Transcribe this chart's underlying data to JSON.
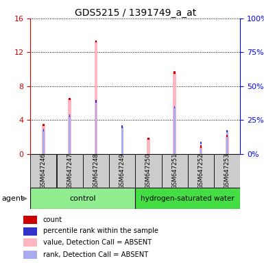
{
  "title": "GDS5215 / 1391749_a_at",
  "samples": [
    "GSM647246",
    "GSM647247",
    "GSM647248",
    "GSM647249",
    "GSM647250",
    "GSM647251",
    "GSM647252",
    "GSM647253"
  ],
  "value_absent": [
    3.4,
    6.5,
    13.3,
    0.0,
    1.8,
    9.6,
    0.85,
    2.1
  ],
  "rank_absent": [
    2.8,
    4.5,
    6.2,
    3.2,
    0.0,
    5.5,
    1.3,
    2.7
  ],
  "count_vals": [
    3.4,
    6.5,
    13.3,
    0.0,
    1.8,
    9.6,
    0.85,
    2.1
  ],
  "pct_vals": [
    2.8,
    4.5,
    6.2,
    3.2,
    0.0,
    5.5,
    1.3,
    2.7
  ],
  "ylim_left": [
    0,
    16
  ],
  "ylim_right": [
    0,
    100
  ],
  "yticks_left": [
    0,
    4,
    8,
    12,
    16
  ],
  "yticks_right": [
    0,
    25,
    50,
    75,
    100
  ],
  "color_count": "#cc0000",
  "color_rank": "#3333cc",
  "color_value_absent": "#FFB6C1",
  "color_rank_absent": "#AAAAEE",
  "control_color": "#90EE90",
  "h2_color": "#44DD44",
  "bg_sample": "#cccccc",
  "legend_labels": [
    "count",
    "percentile rank within the sample",
    "value, Detection Call = ABSENT",
    "rank, Detection Call = ABSENT"
  ],
  "legend_colors": [
    "#cc0000",
    "#3333cc",
    "#FFB6C1",
    "#AAAAEE"
  ]
}
